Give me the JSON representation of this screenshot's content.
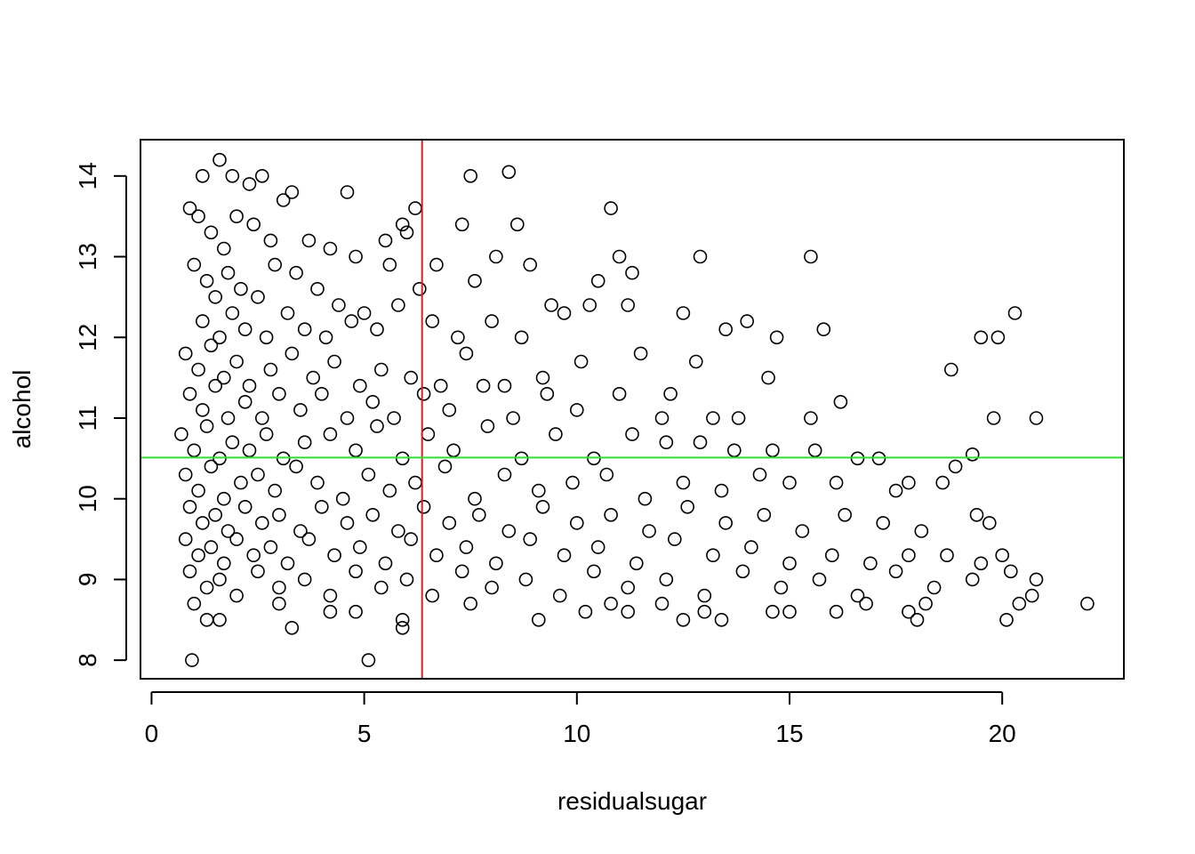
{
  "chart_data": {
    "type": "scatter",
    "title": "",
    "xlabel": "residualsugar",
    "ylabel": "alcohol",
    "xlim": [
      -0.26,
      22.86
    ],
    "ylim": [
      7.77,
      14.45
    ],
    "xticks": [
      0,
      5,
      10,
      15,
      20
    ],
    "xtick_labels": [
      "0",
      "5",
      "10",
      "15",
      "20"
    ],
    "yticks": [
      8,
      9,
      10,
      11,
      12,
      13,
      14
    ],
    "ytick_labels": [
      "8",
      "9",
      "10",
      "11",
      "12",
      "13",
      "14"
    ],
    "grid": false,
    "legend": "none",
    "marker": "open-circle",
    "reference_lines": [
      {
        "orientation": "vertical",
        "value": 6.36,
        "color": "#e41a1c"
      },
      {
        "orientation": "horizontal",
        "value": 10.51,
        "color": "#33dd33"
      }
    ],
    "series": [
      {
        "color": "#000000",
        "points": [
          [
            0.9,
            13.6
          ],
          [
            1.2,
            14.0
          ],
          [
            1.6,
            14.2
          ],
          [
            1.9,
            14.0
          ],
          [
            2.3,
            13.9
          ],
          [
            2.6,
            14.0
          ],
          [
            3.3,
            13.8
          ],
          [
            4.6,
            13.8
          ],
          [
            5.9,
            13.4
          ],
          [
            6.2,
            13.6
          ],
          [
            7.5,
            14.0
          ],
          [
            8.4,
            14.05
          ],
          [
            10.8,
            13.6
          ],
          [
            1.1,
            13.5
          ],
          [
            1.4,
            13.3
          ],
          [
            1.7,
            13.1
          ],
          [
            2.0,
            13.5
          ],
          [
            2.4,
            13.4
          ],
          [
            2.8,
            13.2
          ],
          [
            3.1,
            13.7
          ],
          [
            3.7,
            13.2
          ],
          [
            4.2,
            13.1
          ],
          [
            4.8,
            13.0
          ],
          [
            5.5,
            13.2
          ],
          [
            6.0,
            13.3
          ],
          [
            7.3,
            13.4
          ],
          [
            8.1,
            13.0
          ],
          [
            8.6,
            13.4
          ],
          [
            11.0,
            13.0
          ],
          [
            12.9,
            13.0
          ],
          [
            15.5,
            13.0
          ],
          [
            1.0,
            12.9
          ],
          [
            1.3,
            12.7
          ],
          [
            1.5,
            12.5
          ],
          [
            1.8,
            12.8
          ],
          [
            2.1,
            12.6
          ],
          [
            2.5,
            12.5
          ],
          [
            2.9,
            12.9
          ],
          [
            3.4,
            12.8
          ],
          [
            3.9,
            12.6
          ],
          [
            4.4,
            12.4
          ],
          [
            5.0,
            12.3
          ],
          [
            5.6,
            12.9
          ],
          [
            6.3,
            12.6
          ],
          [
            6.7,
            12.9
          ],
          [
            7.6,
            12.7
          ],
          [
            8.9,
            12.9
          ],
          [
            9.4,
            12.4
          ],
          [
            10.5,
            12.7
          ],
          [
            11.3,
            12.8
          ],
          [
            12.5,
            12.3
          ],
          [
            1.2,
            12.2
          ],
          [
            1.6,
            12.0
          ],
          [
            1.9,
            12.3
          ],
          [
            2.2,
            12.1
          ],
          [
            2.7,
            12.0
          ],
          [
            3.2,
            12.3
          ],
          [
            3.6,
            12.1
          ],
          [
            4.1,
            12.0
          ],
          [
            4.7,
            12.2
          ],
          [
            5.3,
            12.1
          ],
          [
            5.8,
            12.4
          ],
          [
            6.6,
            12.2
          ],
          [
            7.2,
            12.0
          ],
          [
            8.0,
            12.2
          ],
          [
            8.7,
            12.0
          ],
          [
            9.7,
            12.3
          ],
          [
            10.3,
            12.4
          ],
          [
            11.2,
            12.4
          ],
          [
            13.5,
            12.1
          ],
          [
            14.0,
            12.2
          ],
          [
            14.7,
            12.0
          ],
          [
            15.8,
            12.1
          ],
          [
            19.5,
            12.0
          ],
          [
            19.9,
            12.0
          ],
          [
            20.3,
            12.3
          ],
          [
            0.8,
            11.8
          ],
          [
            1.1,
            11.6
          ],
          [
            1.4,
            11.9
          ],
          [
            1.7,
            11.5
          ],
          [
            2.0,
            11.7
          ],
          [
            2.3,
            11.4
          ],
          [
            2.8,
            11.6
          ],
          [
            3.3,
            11.8
          ],
          [
            3.8,
            11.5
          ],
          [
            4.3,
            11.7
          ],
          [
            4.9,
            11.4
          ],
          [
            5.4,
            11.6
          ],
          [
            6.1,
            11.5
          ],
          [
            6.8,
            11.4
          ],
          [
            7.4,
            11.8
          ],
          [
            8.3,
            11.4
          ],
          [
            9.2,
            11.5
          ],
          [
            10.1,
            11.7
          ],
          [
            11.5,
            11.8
          ],
          [
            12.2,
            11.3
          ],
          [
            12.8,
            11.7
          ],
          [
            14.5,
            11.5
          ],
          [
            18.8,
            11.6
          ],
          [
            0.9,
            11.3
          ],
          [
            1.2,
            11.1
          ],
          [
            1.5,
            11.4
          ],
          [
            1.8,
            11.0
          ],
          [
            2.2,
            11.2
          ],
          [
            2.6,
            11.0
          ],
          [
            3.0,
            11.3
          ],
          [
            3.5,
            11.1
          ],
          [
            4.0,
            11.3
          ],
          [
            4.6,
            11.0
          ],
          [
            5.2,
            11.2
          ],
          [
            5.7,
            11.0
          ],
          [
            6.4,
            11.3
          ],
          [
            7.0,
            11.1
          ],
          [
            7.8,
            11.4
          ],
          [
            8.5,
            11.0
          ],
          [
            9.3,
            11.3
          ],
          [
            10.0,
            11.1
          ],
          [
            11.0,
            11.3
          ],
          [
            12.0,
            11.0
          ],
          [
            13.2,
            11.0
          ],
          [
            13.8,
            11.0
          ],
          [
            15.5,
            11.0
          ],
          [
            16.2,
            11.2
          ],
          [
            19.8,
            11.0
          ],
          [
            20.8,
            11.0
          ],
          [
            0.7,
            10.8
          ],
          [
            1.0,
            10.6
          ],
          [
            1.3,
            10.9
          ],
          [
            1.6,
            10.5
          ],
          [
            1.9,
            10.7
          ],
          [
            2.3,
            10.6
          ],
          [
            2.7,
            10.8
          ],
          [
            3.1,
            10.5
          ],
          [
            3.6,
            10.7
          ],
          [
            4.2,
            10.8
          ],
          [
            4.8,
            10.6
          ],
          [
            5.3,
            10.9
          ],
          [
            5.9,
            10.5
          ],
          [
            6.5,
            10.8
          ],
          [
            7.1,
            10.6
          ],
          [
            7.9,
            10.9
          ],
          [
            8.7,
            10.5
          ],
          [
            9.5,
            10.8
          ],
          [
            10.4,
            10.5
          ],
          [
            11.3,
            10.8
          ],
          [
            12.1,
            10.7
          ],
          [
            12.9,
            10.7
          ],
          [
            13.7,
            10.6
          ],
          [
            14.6,
            10.6
          ],
          [
            15.6,
            10.6
          ],
          [
            16.6,
            10.5
          ],
          [
            17.1,
            10.5
          ],
          [
            19.3,
            10.55
          ],
          [
            0.8,
            10.3
          ],
          [
            1.1,
            10.1
          ],
          [
            1.4,
            10.4
          ],
          [
            1.7,
            10.0
          ],
          [
            2.1,
            10.2
          ],
          [
            2.5,
            10.3
          ],
          [
            2.9,
            10.1
          ],
          [
            3.4,
            10.4
          ],
          [
            3.9,
            10.2
          ],
          [
            4.5,
            10.0
          ],
          [
            5.1,
            10.3
          ],
          [
            5.6,
            10.1
          ],
          [
            6.2,
            10.2
          ],
          [
            6.9,
            10.4
          ],
          [
            7.6,
            10.0
          ],
          [
            8.3,
            10.3
          ],
          [
            9.1,
            10.1
          ],
          [
            9.9,
            10.2
          ],
          [
            10.7,
            10.3
          ],
          [
            11.6,
            10.0
          ],
          [
            12.5,
            10.2
          ],
          [
            13.4,
            10.1
          ],
          [
            14.3,
            10.3
          ],
          [
            15.0,
            10.2
          ],
          [
            16.1,
            10.2
          ],
          [
            17.5,
            10.1
          ],
          [
            17.8,
            10.2
          ],
          [
            18.6,
            10.2
          ],
          [
            18.9,
            10.4
          ],
          [
            0.9,
            9.9
          ],
          [
            1.2,
            9.7
          ],
          [
            1.5,
            9.8
          ],
          [
            1.8,
            9.6
          ],
          [
            2.2,
            9.9
          ],
          [
            2.6,
            9.7
          ],
          [
            3.0,
            9.8
          ],
          [
            3.5,
            9.6
          ],
          [
            4.0,
            9.9
          ],
          [
            4.6,
            9.7
          ],
          [
            5.2,
            9.8
          ],
          [
            5.8,
            9.6
          ],
          [
            6.4,
            9.9
          ],
          [
            7.0,
            9.7
          ],
          [
            7.7,
            9.8
          ],
          [
            8.4,
            9.6
          ],
          [
            9.2,
            9.9
          ],
          [
            10.0,
            9.7
          ],
          [
            10.8,
            9.8
          ],
          [
            11.7,
            9.6
          ],
          [
            12.6,
            9.9
          ],
          [
            13.5,
            9.7
          ],
          [
            14.4,
            9.8
          ],
          [
            15.3,
            9.6
          ],
          [
            16.3,
            9.8
          ],
          [
            17.2,
            9.7
          ],
          [
            18.1,
            9.6
          ],
          [
            19.4,
            9.8
          ],
          [
            19.7,
            9.7
          ],
          [
            0.8,
            9.5
          ],
          [
            1.1,
            9.3
          ],
          [
            1.4,
            9.4
          ],
          [
            1.7,
            9.2
          ],
          [
            2.0,
            9.5
          ],
          [
            2.4,
            9.3
          ],
          [
            2.8,
            9.4
          ],
          [
            3.2,
            9.2
          ],
          [
            3.7,
            9.5
          ],
          [
            4.3,
            9.3
          ],
          [
            4.9,
            9.4
          ],
          [
            5.5,
            9.2
          ],
          [
            6.1,
            9.5
          ],
          [
            6.7,
            9.3
          ],
          [
            7.4,
            9.4
          ],
          [
            8.1,
            9.2
          ],
          [
            8.9,
            9.5
          ],
          [
            9.7,
            9.3
          ],
          [
            10.5,
            9.4
          ],
          [
            11.4,
            9.2
          ],
          [
            12.3,
            9.5
          ],
          [
            13.2,
            9.3
          ],
          [
            14.1,
            9.4
          ],
          [
            15.0,
            9.2
          ],
          [
            16.0,
            9.3
          ],
          [
            16.9,
            9.2
          ],
          [
            17.8,
            9.3
          ],
          [
            18.7,
            9.3
          ],
          [
            19.5,
            9.2
          ],
          [
            20.0,
            9.3
          ],
          [
            0.9,
            9.1
          ],
          [
            1.3,
            8.9
          ],
          [
            1.6,
            9.0
          ],
          [
            2.0,
            8.8
          ],
          [
            2.5,
            9.1
          ],
          [
            3.0,
            8.9
          ],
          [
            3.6,
            9.0
          ],
          [
            4.2,
            8.8
          ],
          [
            4.8,
            9.1
          ],
          [
            5.4,
            8.9
          ],
          [
            6.0,
            9.0
          ],
          [
            6.6,
            8.8
          ],
          [
            7.3,
            9.1
          ],
          [
            8.0,
            8.9
          ],
          [
            8.8,
            9.0
          ],
          [
            9.6,
            8.8
          ],
          [
            10.4,
            9.1
          ],
          [
            11.2,
            8.9
          ],
          [
            12.1,
            9.0
          ],
          [
            13.0,
            8.8
          ],
          [
            13.9,
            9.1
          ],
          [
            14.8,
            8.9
          ],
          [
            15.7,
            9.0
          ],
          [
            16.6,
            8.8
          ],
          [
            17.5,
            9.1
          ],
          [
            18.4,
            8.9
          ],
          [
            19.3,
            9.0
          ],
          [
            20.2,
            9.1
          ],
          [
            20.8,
            9.0
          ],
          [
            1.0,
            8.7
          ],
          [
            1.3,
            8.5
          ],
          [
            1.6,
            8.5
          ],
          [
            3.0,
            8.7
          ],
          [
            3.3,
            8.4
          ],
          [
            4.2,
            8.6
          ],
          [
            4.8,
            8.6
          ],
          [
            5.9,
            8.5
          ],
          [
            5.9,
            8.4
          ],
          [
            7.5,
            8.7
          ],
          [
            9.1,
            8.5
          ],
          [
            10.2,
            8.6
          ],
          [
            10.8,
            8.7
          ],
          [
            11.2,
            8.6
          ],
          [
            12.0,
            8.7
          ],
          [
            12.5,
            8.5
          ],
          [
            13.0,
            8.6
          ],
          [
            13.4,
            8.5
          ],
          [
            14.6,
            8.6
          ],
          [
            15.0,
            8.6
          ],
          [
            16.1,
            8.6
          ],
          [
            16.8,
            8.7
          ],
          [
            17.8,
            8.6
          ],
          [
            18.0,
            8.5
          ],
          [
            18.2,
            8.7
          ],
          [
            20.1,
            8.5
          ],
          [
            20.4,
            8.7
          ],
          [
            20.7,
            8.8
          ],
          [
            22.0,
            8.7
          ],
          [
            0.95,
            8.0
          ],
          [
            5.1,
            8.0
          ]
        ]
      }
    ]
  }
}
